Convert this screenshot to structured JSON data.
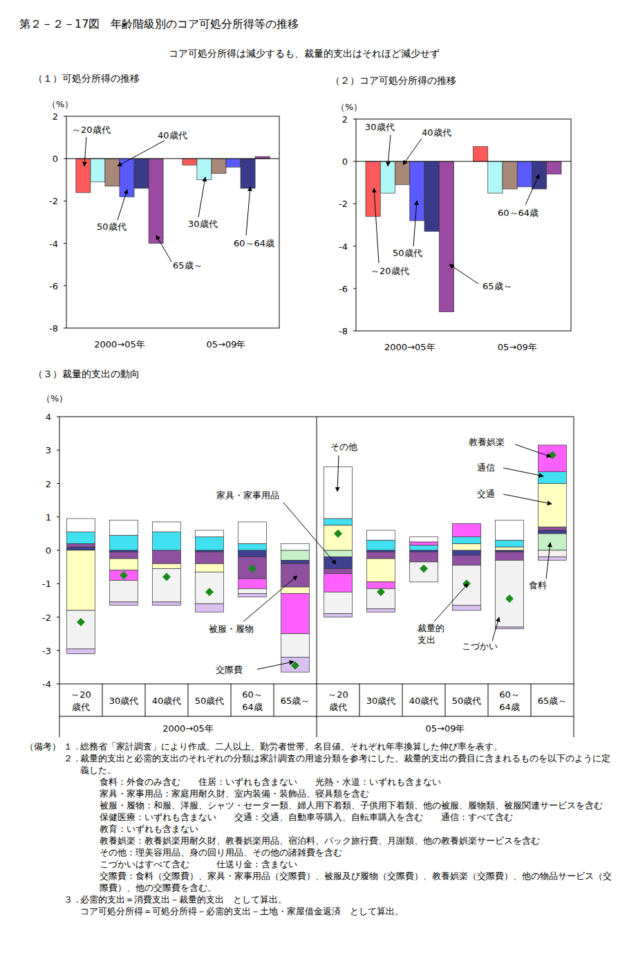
{
  "title": "第２－２－17図　年齢階級別のコア可処分所得等の推移",
  "subtitle": "コア可処分所得は減少するも、裁量的支出はそれほど減少せず",
  "chart_data": [
    {
      "type": "bar",
      "title": "（１）可処分所得の推移",
      "y_label": "（%）",
      "categories": [
        "2000→05年",
        "05→09年"
      ],
      "series": [
        {
          "name": "～20歳代",
          "color": "#ff5a5a",
          "values": [
            -1.6,
            -0.3
          ]
        },
        {
          "name": "30歳代",
          "color": "#b0f8f8",
          "values": [
            -1.1,
            -1.0
          ]
        },
        {
          "name": "40歳代",
          "color": "#a88878",
          "values": [
            -1.3,
            -0.7
          ]
        },
        {
          "name": "50歳代",
          "color": "#5a5aff",
          "values": [
            -1.8,
            -0.4
          ]
        },
        {
          "name": "60～64歳",
          "color": "#3a3a8a",
          "values": [
            -1.4,
            -1.4
          ]
        },
        {
          "name": "65歳～",
          "color": "#9a4aa0",
          "values": [
            -4.0,
            0.1
          ]
        }
      ],
      "ylim": [
        -8,
        2
      ],
      "yticks": [
        -8,
        -6,
        -4,
        -2,
        0,
        2
      ],
      "grid": false
    },
    {
      "type": "bar",
      "title": "（２）コア可処分所得の推移",
      "y_label": "（%）",
      "categories": [
        "2000→05年",
        "05→09年"
      ],
      "series": [
        {
          "name": "～20歳代",
          "color": "#ff5a5a",
          "values": [
            -2.6,
            0.7
          ]
        },
        {
          "name": "30歳代",
          "color": "#b0f8f8",
          "values": [
            -1.5,
            -1.5
          ]
        },
        {
          "name": "40歳代",
          "color": "#a88878",
          "values": [
            -1.1,
            -1.3
          ]
        },
        {
          "name": "50歳代",
          "color": "#5a5aff",
          "values": [
            -2.8,
            -1.2
          ]
        },
        {
          "name": "60～64歳",
          "color": "#3a3a8a",
          "values": [
            -3.3,
            -1.3
          ]
        },
        {
          "name": "65歳～",
          "color": "#9a4aa0",
          "values": [
            -7.1,
            -0.6
          ]
        }
      ],
      "ylim": [
        -8,
        2
      ],
      "yticks": [
        -8,
        -6,
        -4,
        -2,
        0,
        2
      ],
      "grid": false
    },
    {
      "type": "bar",
      "stacked": true,
      "title": "（３）裁量的支出の動向",
      "y_label": "（%）",
      "categories": [
        "～20\n歳代",
        "30歳代",
        "40歳代",
        "50歳代",
        "60～\n64歳",
        "65歳～",
        "～20\n歳代",
        "30歳代",
        "40歳代",
        "50歳代",
        "60～\n64歳",
        "65歳～"
      ],
      "group_labels": [
        "2000→05年",
        "05→09年"
      ],
      "series": [
        {
          "name": "食料",
          "color": "#c8f0c8",
          "values": [
            0,
            0,
            0,
            0,
            0,
            -0.3,
            -0.2,
            0,
            0,
            0,
            0,
            0.5
          ]
        },
        {
          "name": "家具・家事用品",
          "color": "#404090",
          "values": [
            0.1,
            -0.05,
            0,
            -0.05,
            -0.2,
            -0.1,
            -0.35,
            -0.05,
            -0.05,
            -0.15,
            -0.05,
            0.1
          ]
        },
        {
          "name": "被服・履物",
          "color": "#9050a0",
          "values": [
            0.1,
            -0.2,
            -0.4,
            -0.35,
            -0.65,
            -0.7,
            -0.15,
            -0.2,
            -0.3,
            -0.3,
            -0.25,
            0.1
          ]
        },
        {
          "name": "交通",
          "color": "#ffffc0",
          "values": [
            -1.8,
            -0.35,
            -0.15,
            -0.25,
            0,
            -0.2,
            0.75,
            -0.7,
            0,
            0.2,
            0.1,
            1.3
          ]
        },
        {
          "name": "通信",
          "color": "#40e0f0",
          "values": [
            0.35,
            0.45,
            0.55,
            0.4,
            0.2,
            0,
            0.2,
            0.3,
            0.15,
            0.2,
            0.2,
            0.35
          ]
        },
        {
          "name": "教養娯楽",
          "color": "#ff60ff",
          "values": [
            0,
            -0.3,
            0,
            0,
            -0.3,
            -1.2,
            -0.55,
            -0.2,
            0.1,
            0.4,
            0,
            0.8
          ]
        },
        {
          "name": "その他",
          "color": "#ffffff",
          "values": [
            0.4,
            0.45,
            0.3,
            0.2,
            0.65,
            0.2,
            1.55,
            0.3,
            0.15,
            0,
            0.6,
            0
          ]
        },
        {
          "name": "こづかい",
          "color": "#f2f2f2",
          "values": [
            -1.15,
            -0.65,
            -1.0,
            -0.95,
            -0.15,
            -0.7,
            -0.65,
            -0.6,
            -0.6,
            -1.2,
            -2.0,
            -0.2
          ]
        },
        {
          "name": "交際費",
          "color": "#d8c0f0",
          "values": [
            -0.15,
            -0.1,
            -0.1,
            -0.25,
            -0.1,
            -0.45,
            -0.1,
            -0.1,
            0,
            -0.15,
            -0.05,
            -0.1
          ]
        },
        {
          "name": "裁量的\n支出",
          "type": "scatter",
          "marker": "diamond",
          "color": "#1a8a1a",
          "values": [
            -2.15,
            -0.75,
            -0.8,
            -1.25,
            -0.55,
            -3.45,
            0.5,
            -1.25,
            -0.55,
            -1.0,
            -1.45,
            2.85
          ]
        }
      ],
      "ylim": [
        -4,
        4
      ],
      "yticks": [
        -4,
        -3,
        -2,
        -1,
        0,
        1,
        2,
        3,
        4
      ],
      "grid": false
    }
  ],
  "notes": {
    "label": "（備考）",
    "items": [
      {
        "number": "１．",
        "lines": [
          "総務省「家計調査」により作成。二人以上、勤労者世帯。名目値。それぞれ年率換算した伸び率を表す。"
        ],
        "definitions": []
      },
      {
        "number": "２．",
        "lines": [
          "裁量的支出と必需的支出のそれぞれの分類は家計調査の用途分類を参考にした。裁量的支出の費目に含まれるものを以下のように定義した。"
        ],
        "definitions": [
          "食料：外食のみ含む　　住居：いずれも含まない　　光熱・水道：いずれも含まない",
          "家具・家事用品：家庭用耐久財、室内装備・装飾品、寝具類を含む",
          "被服・履物：和服、洋服、シャツ・セーター類、婦人用下着類、子供用下着類、他の被服、履物類、被服関連サービスを含む",
          "保健医療：いずれも含まない　　交通：交通、自動車等購入、自転車購入を含む　　通信：すべて含む",
          "教育：いずれも含まない",
          "教養娯楽：教養娯楽用耐久財、教養娯楽用品、宿泊料、パック旅行費、月謝類、他の教養娯楽サービスを含む",
          "その他：理美容用品、身の回り用品、その他の諸雑費を含む",
          "こづかいはすべて含む　　　仕送り金：含まない",
          "交際費：食料（交際費）、家具・家事用品（交際費）、被服及び履物（交際費）、教養娯楽（交際費）、他の物品サービス（交際費）、他の交際費を含む。"
        ]
      },
      {
        "number": "３．",
        "lines": [
          "必需的支出＝消費支出－裁量的支出　として算出。",
          "コア可処分所得＝可処分所得－必需的支出－土地・家屋借金返済　として算出。"
        ],
        "definitions": []
      }
    ]
  }
}
